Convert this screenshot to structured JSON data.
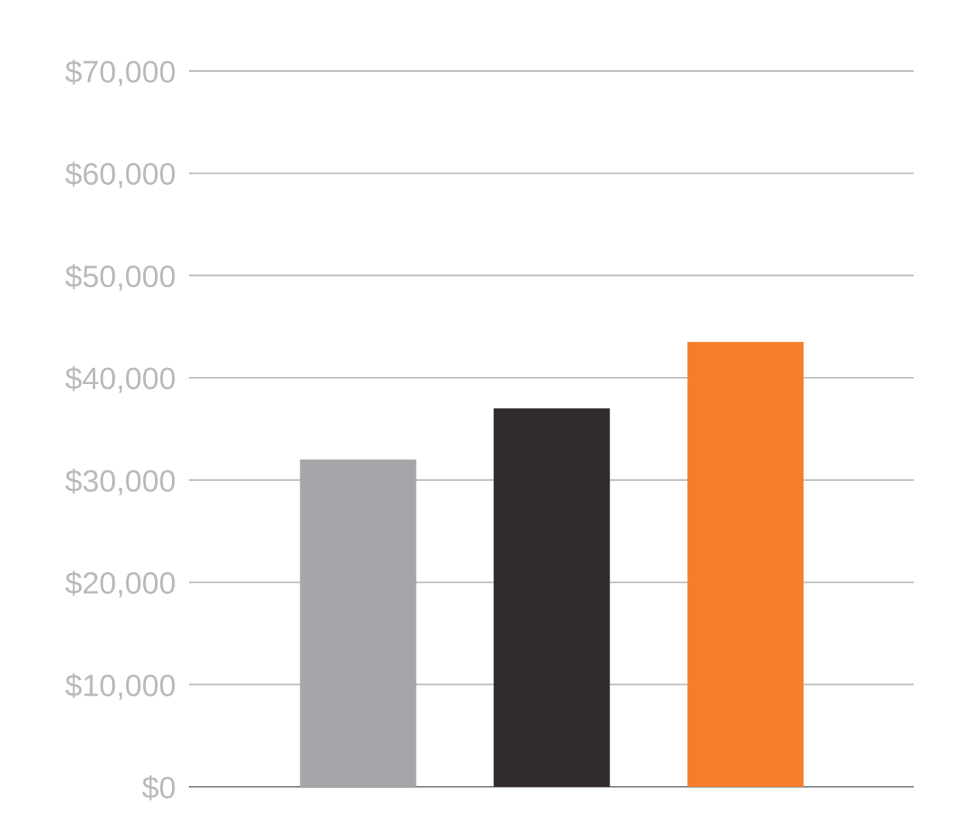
{
  "chart_data": {
    "type": "bar",
    "title": "",
    "xlabel": "",
    "ylabel": "",
    "ylim": [
      0,
      70000
    ],
    "yticks": [
      0,
      10000,
      20000,
      30000,
      40000,
      50000,
      60000,
      70000
    ],
    "ytick_labels": [
      "$0",
      "$10,000",
      "$20,000",
      "$30,000",
      "$40,000",
      "$50,000",
      "$60,000",
      "$70,000"
    ],
    "grid": true,
    "legend": "none",
    "categories": [
      "",
      "",
      ""
    ],
    "values": [
      32000,
      37000,
      43500
    ],
    "colors": [
      "#a5a6a9",
      "#312b2b",
      "#f47e2a"
    ]
  },
  "style": {
    "gridline_color": "#bdbdbd",
    "baseline_color": "#8a8a8a",
    "tick_label_color": "#b9babc"
  }
}
